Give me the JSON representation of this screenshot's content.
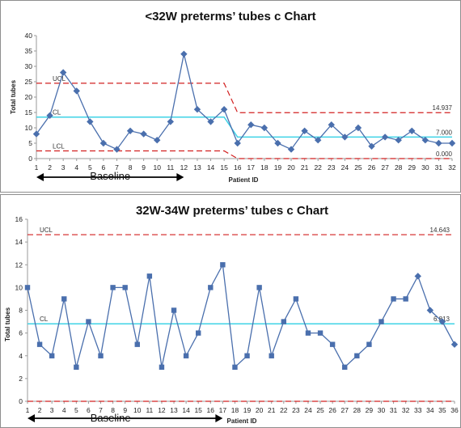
{
  "chart_data": [
    {
      "type": "line",
      "title": "<32W preterms’ tubes c Chart",
      "xlabel": "Patient ID",
      "ylabel": "Total tubes",
      "x": [
        1,
        2,
        3,
        4,
        5,
        6,
        7,
        8,
        9,
        10,
        11,
        12,
        13,
        14,
        15,
        16,
        17,
        18,
        19,
        20,
        21,
        22,
        23,
        24,
        25,
        26,
        27,
        28,
        29,
        30,
        31,
        32
      ],
      "series": [
        {
          "values": [
            8,
            14,
            28,
            22,
            12,
            5,
            3,
            9,
            8,
            6,
            12,
            34,
            16,
            12,
            16,
            5,
            11,
            10,
            5,
            3,
            9,
            6,
            11,
            7,
            10,
            4,
            7,
            6,
            9,
            6,
            5,
            5
          ]
        }
      ],
      "ylim": [
        0,
        40
      ],
      "yticks": [
        0,
        5,
        10,
        15,
        20,
        25,
        30,
        35,
        40
      ],
      "limits": {
        "baseline": {
          "ucl": 24.5,
          "cl": 13.5,
          "lcl": 2.5
        },
        "after": {
          "ucl": 14.937,
          "cl": 7.0,
          "lcl": 0.0
        }
      },
      "limit_labels": {
        "ucl": "UCL",
        "cl": "CL",
        "lcl": "LCL",
        "ucl_value": "14.937",
        "cl_value": "7.000",
        "lcl_value": "0.000"
      },
      "baseline_label": "Baseline",
      "baseline_range": [
        1,
        15
      ],
      "grid": false
    },
    {
      "type": "line",
      "title": "32W-34W preterms’ tubes c Chart",
      "xlabel": "Patient ID",
      "ylabel": "Total tubes",
      "x": [
        1,
        2,
        3,
        4,
        5,
        6,
        7,
        8,
        9,
        10,
        11,
        12,
        13,
        14,
        15,
        16,
        17,
        18,
        19,
        20,
        21,
        22,
        23,
        24,
        25,
        26,
        27,
        28,
        29,
        30,
        31,
        32,
        33,
        34,
        35,
        36
      ],
      "series": [
        {
          "values": [
            10,
            5,
            4,
            9,
            3,
            7,
            4,
            10,
            10,
            5,
            11,
            3,
            8,
            4,
            6,
            10,
            12,
            3,
            4,
            10,
            4,
            7,
            9,
            6,
            6,
            5,
            3,
            4,
            5,
            7,
            9,
            9,
            11,
            8,
            7,
            5
          ]
        }
      ],
      "ylim": [
        0,
        16
      ],
      "yticks": [
        0,
        2,
        4,
        6,
        8,
        10,
        12,
        14,
        16
      ],
      "limits": {
        "ucl": 14.643,
        "cl": 6.813,
        "lcl": 0.0
      },
      "limit_labels": {
        "ucl": "UCL",
        "cl": "CL",
        "ucl_value": "14.643",
        "cl_value": "6.813"
      },
      "baseline_label": "Baseline",
      "baseline_range": [
        1,
        17
      ],
      "grid": false
    }
  ],
  "colors": {
    "series": "#4a6fad",
    "limits": "#d22020",
    "center": "#3fd3e6",
    "axis": "#9a9a9a"
  }
}
